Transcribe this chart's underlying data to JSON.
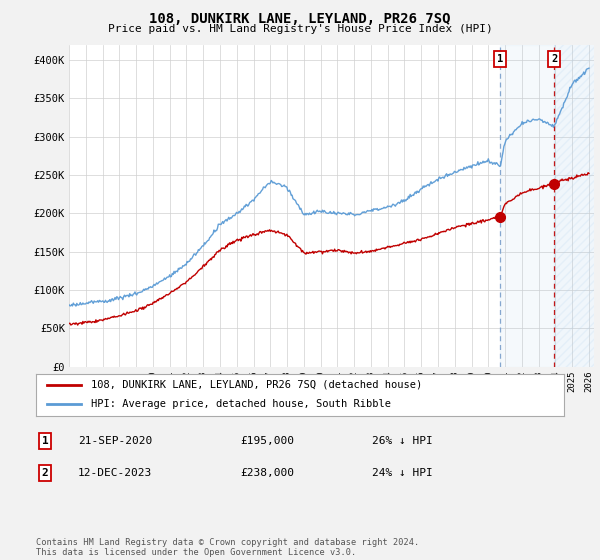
{
  "title": "108, DUNKIRK LANE, LEYLAND, PR26 7SQ",
  "subtitle": "Price paid vs. HM Land Registry's House Price Index (HPI)",
  "ylim": [
    0,
    420000
  ],
  "yticks": [
    0,
    50000,
    100000,
    150000,
    200000,
    250000,
    300000,
    350000,
    400000
  ],
  "ytick_labels": [
    "£0",
    "£50K",
    "£100K",
    "£150K",
    "£200K",
    "£250K",
    "£300K",
    "£350K",
    "£400K"
  ],
  "hpi_color": "#5b9bd5",
  "price_color": "#c00000",
  "background_color": "#f2f2f2",
  "plot_bg_color": "#ffffff",
  "legend_label_price": "108, DUNKIRK LANE, LEYLAND, PR26 7SQ (detached house)",
  "legend_label_hpi": "HPI: Average price, detached house, South Ribble",
  "transaction1_date": "21-SEP-2020",
  "transaction1_price": "£195,000",
  "transaction1_pct": "26% ↓ HPI",
  "transaction2_date": "12-DEC-2023",
  "transaction2_price": "£238,000",
  "transaction2_pct": "24% ↓ HPI",
  "footer": "Contains HM Land Registry data © Crown copyright and database right 2024.\nThis data is licensed under the Open Government Licence v3.0.",
  "sale1_year": 2020.72,
  "sale1_value": 195000,
  "sale2_year": 2023.94,
  "sale2_value": 238000,
  "xlim_start": 1995,
  "xlim_end": 2026.3
}
